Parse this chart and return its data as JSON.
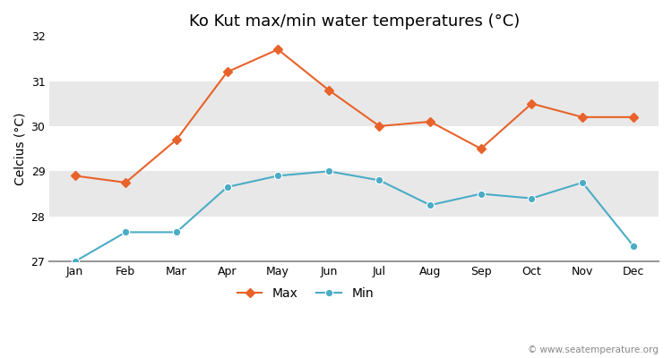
{
  "title": "Ko Kut max/min water temperatures (°C)",
  "ylabel": "Celcius (°C)",
  "months": [
    "Jan",
    "Feb",
    "Mar",
    "Apr",
    "May",
    "Jun",
    "Jul",
    "Aug",
    "Sep",
    "Oct",
    "Nov",
    "Dec"
  ],
  "max_temps": [
    28.9,
    28.75,
    29.7,
    31.2,
    31.7,
    30.8,
    30.0,
    30.1,
    29.5,
    30.5,
    30.2,
    30.2
  ],
  "min_temps": [
    27.0,
    27.65,
    27.65,
    28.65,
    28.9,
    29.0,
    28.8,
    28.25,
    28.5,
    28.4,
    28.75,
    27.35
  ],
  "max_color": "#e8622a",
  "min_color": "#4bacc6",
  "ylim_min": 27,
  "ylim_max": 32,
  "yticks": [
    27,
    28,
    29,
    30,
    31,
    32
  ],
  "bg_color": "#ffffff",
  "band_colors": [
    "#ffffff",
    "#e8e8e8",
    "#ffffff",
    "#e8e8e8",
    "#ffffff"
  ],
  "watermark": "© www.seatemperature.org",
  "title_fontsize": 13,
  "label_fontsize": 10,
  "tick_fontsize": 9,
  "legend_fontsize": 10
}
